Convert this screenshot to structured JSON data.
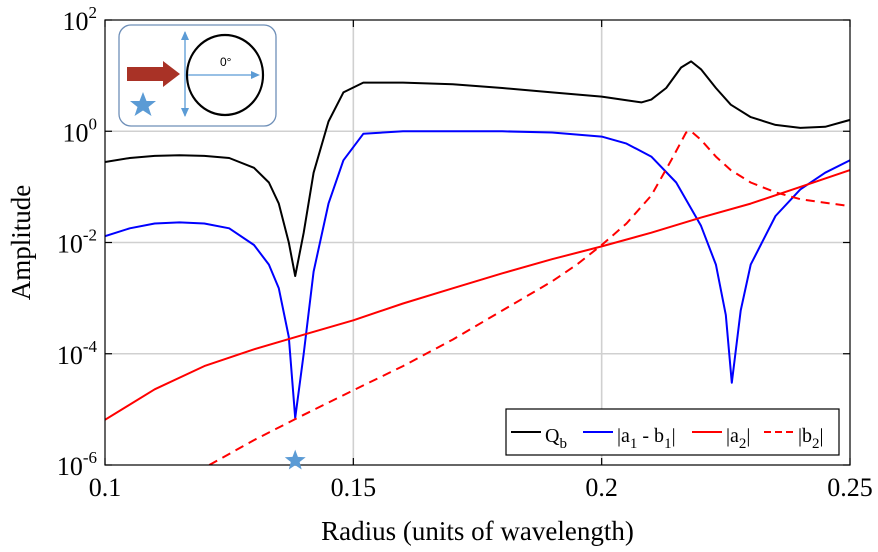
{
  "chart_data": {
    "type": "line",
    "xlabel": "Radius (units of wavelength)",
    "ylabel": "Amplitude",
    "xlim": [
      0.1,
      0.25
    ],
    "ylim": [
      1e-06,
      100
    ],
    "yscale": "log",
    "grid": true,
    "x_ticks": [
      {
        "value": 0.1,
        "label": "0.1"
      },
      {
        "value": 0.15,
        "label": "0.15"
      },
      {
        "value": 0.2,
        "label": "0.2"
      },
      {
        "value": 0.25,
        "label": "0.25"
      }
    ],
    "y_ticks": [
      {
        "value": 1e-06,
        "base": "10",
        "exp": "-6"
      },
      {
        "value": 0.0001,
        "base": "10",
        "exp": "-4"
      },
      {
        "value": 0.01,
        "base": "10",
        "exp": "-2"
      },
      {
        "value": 1,
        "base": "10",
        "exp": "0"
      },
      {
        "value": 100,
        "base": "10",
        "exp": "2"
      }
    ],
    "legend_position": "bottom-right",
    "series": [
      {
        "name": "Qb",
        "legend": {
          "main": "Q",
          "sub": "b",
          "post": ""
        },
        "color": "#000000",
        "dash": "solid",
        "x": [
          0.1,
          0.105,
          0.11,
          0.115,
          0.12,
          0.125,
          0.13,
          0.133,
          0.135,
          0.137,
          0.1383,
          0.14,
          0.142,
          0.145,
          0.148,
          0.152,
          0.16,
          0.17,
          0.18,
          0.19,
          0.2,
          0.205,
          0.208,
          0.21,
          0.213,
          0.216,
          0.218,
          0.22,
          0.223,
          0.226,
          0.23,
          0.235,
          0.24,
          0.245,
          0.25
        ],
        "y": [
          0.28,
          0.33,
          0.36,
          0.37,
          0.36,
          0.33,
          0.22,
          0.12,
          0.05,
          0.01,
          0.0025,
          0.015,
          0.18,
          1.5,
          5.0,
          7.5,
          7.5,
          7.0,
          6.0,
          5.0,
          4.2,
          3.6,
          3.3,
          3.7,
          6.0,
          14.0,
          18.0,
          13.0,
          6.0,
          3.0,
          1.8,
          1.3,
          1.15,
          1.2,
          1.6
        ]
      },
      {
        "name": "|a1 - b1|",
        "legend": {
          "main": "|a",
          "sub": "1",
          "post": " - b",
          "sub2": "1",
          "post2": "|"
        },
        "color": "#0000ff",
        "dash": "solid",
        "x": [
          0.1,
          0.105,
          0.11,
          0.115,
          0.12,
          0.125,
          0.13,
          0.133,
          0.135,
          0.137,
          0.1383,
          0.14,
          0.142,
          0.145,
          0.148,
          0.152,
          0.16,
          0.17,
          0.18,
          0.19,
          0.2,
          0.205,
          0.21,
          0.215,
          0.22,
          0.223,
          0.225,
          0.2262,
          0.228,
          0.23,
          0.235,
          0.24,
          0.245,
          0.25
        ],
        "y": [
          0.013,
          0.018,
          0.022,
          0.023,
          0.022,
          0.018,
          0.009,
          0.004,
          0.0015,
          0.0002,
          7e-06,
          0.0001,
          0.003,
          0.05,
          0.3,
          0.9,
          1.0,
          1.0,
          1.0,
          0.95,
          0.8,
          0.6,
          0.35,
          0.12,
          0.02,
          0.004,
          0.0005,
          3e-05,
          0.0006,
          0.004,
          0.03,
          0.09,
          0.18,
          0.3
        ]
      },
      {
        "name": "|a2|",
        "legend": {
          "main": "|a",
          "sub": "2",
          "post": "|"
        },
        "color": "#ff0000",
        "dash": "solid",
        "x": [
          0.1,
          0.11,
          0.12,
          0.13,
          0.14,
          0.15,
          0.16,
          0.17,
          0.18,
          0.19,
          0.2,
          0.21,
          0.22,
          0.23,
          0.24,
          0.25
        ],
        "y": [
          6.5e-06,
          2.3e-05,
          6e-05,
          0.00012,
          0.00022,
          0.0004,
          0.0008,
          0.0015,
          0.0028,
          0.005,
          0.0085,
          0.015,
          0.028,
          0.05,
          0.1,
          0.2
        ]
      },
      {
        "name": "|b2|",
        "legend": {
          "main": "|b",
          "sub": "2",
          "post": "|"
        },
        "color": "#ff0000",
        "dash": "dashed",
        "x": [
          0.121,
          0.13,
          0.14,
          0.15,
          0.16,
          0.17,
          0.18,
          0.19,
          0.195,
          0.2,
          0.205,
          0.21,
          0.214,
          0.217,
          0.218,
          0.22,
          0.223,
          0.226,
          0.23,
          0.235,
          0.24,
          0.25
        ],
        "y": [
          1e-06,
          2.8e-06,
          8e-06,
          2.2e-05,
          6e-05,
          0.00018,
          0.0006,
          0.002,
          0.004,
          0.009,
          0.022,
          0.07,
          0.3,
          0.95,
          1.0,
          0.7,
          0.35,
          0.2,
          0.12,
          0.08,
          0.06,
          0.045
        ]
      }
    ],
    "markers": [
      {
        "name": "star-marker",
        "x": 0.1383,
        "y": 1.2e-06,
        "color": "#5b9bd5"
      }
    ],
    "inset": {
      "angle_label": "0°",
      "arrow_color": "#a93226",
      "arrow_light_color": "#5b9bd5",
      "border_color": "#6e8fb8"
    }
  }
}
